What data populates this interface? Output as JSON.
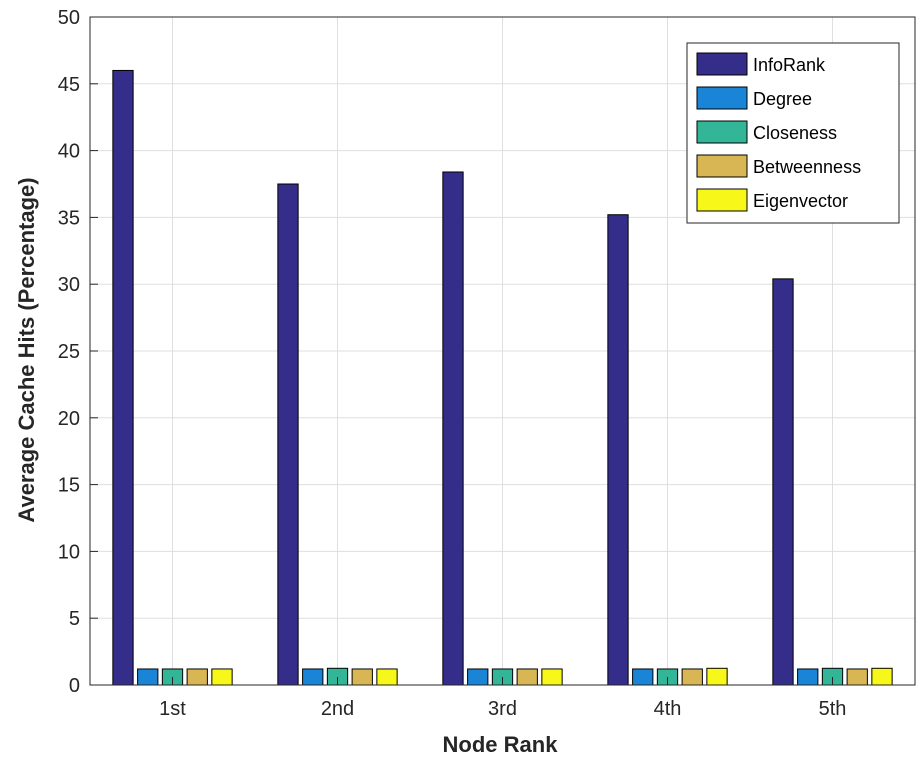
{
  "chart_data": {
    "type": "bar",
    "title": "",
    "xlabel": "Node Rank",
    "ylabel": "Average Cache Hits (Percentage)",
    "categories": [
      "1st",
      "2nd",
      "3rd",
      "4th",
      "5th"
    ],
    "ylim": [
      0,
      50
    ],
    "yticks": [
      0,
      5,
      10,
      15,
      20,
      25,
      30,
      35,
      40,
      45,
      50
    ],
    "grid": true,
    "legend": "top-right",
    "series": [
      {
        "name": "InfoRank",
        "color": "#342d8a",
        "values": [
          46.0,
          37.5,
          38.4,
          35.2,
          30.4
        ]
      },
      {
        "name": "Degree",
        "color": "#1a84d6",
        "values": [
          1.2,
          1.2,
          1.2,
          1.2,
          1.2
        ]
      },
      {
        "name": "Closeness",
        "color": "#33b597",
        "values": [
          1.2,
          1.25,
          1.2,
          1.2,
          1.25
        ]
      },
      {
        "name": "Betweenness",
        "color": "#d9b654",
        "values": [
          1.2,
          1.2,
          1.2,
          1.2,
          1.2
        ]
      },
      {
        "name": "Eigenvector",
        "color": "#f7f719",
        "values": [
          1.2,
          1.2,
          1.2,
          1.25,
          1.25
        ]
      }
    ]
  }
}
